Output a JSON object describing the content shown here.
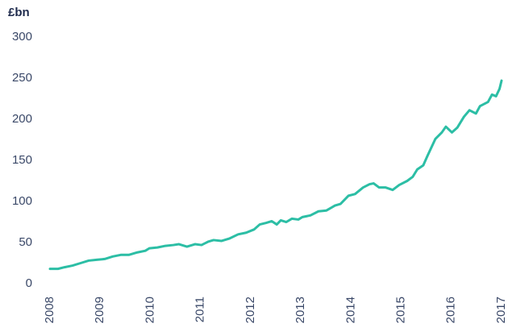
{
  "chart_data": {
    "type": "line",
    "y_label": "£bn",
    "x": [
      2008,
      2008.16,
      2008.29,
      2008.45,
      2008.61,
      2008.77,
      2008.93,
      2009.09,
      2009.25,
      2009.41,
      2009.57,
      2009.74,
      2009.9,
      2009.98,
      2010.14,
      2010.3,
      2010.46,
      2010.57,
      2010.73,
      2010.89,
      2011.02,
      2011.15,
      2011.26,
      2011.42,
      2011.58,
      2011.75,
      2011.91,
      2012.07,
      2012.18,
      2012.31,
      2012.42,
      2012.52,
      2012.6,
      2012.71,
      2012.82,
      2012.95,
      2013.03,
      2013.19,
      2013.35,
      2013.51,
      2013.68,
      2013.79,
      2013.95,
      2014.08,
      2014.24,
      2014.37,
      2014.45,
      2014.56,
      2014.69,
      2014.83,
      2014.96,
      2015.12,
      2015.23,
      2015.32,
      2015.44,
      2015.52,
      2015.68,
      2015.81,
      2015.89,
      2016.01,
      2016.12,
      2016.25,
      2016.36,
      2016.49,
      2016.57,
      2016.73,
      2016.81,
      2016.89,
      2016.96,
      2017
    ],
    "series": [
      {
        "color": "#2cbea5",
        "values": [
          18,
          18,
          20,
          22,
          25,
          28,
          29,
          30,
          33,
          35,
          35,
          38,
          40,
          43,
          44,
          46,
          47,
          48,
          45,
          48,
          47,
          51,
          53,
          52,
          55,
          60,
          62,
          66,
          72,
          74,
          76,
          72,
          77,
          75,
          79,
          78,
          81,
          83,
          88,
          89,
          95,
          97,
          107,
          109,
          117,
          121,
          122,
          117,
          117,
          114,
          120,
          125,
          130,
          139,
          144,
          155,
          176,
          184,
          191,
          184,
          190,
          203,
          211,
          207,
          216,
          221,
          230,
          228,
          237,
          247
        ]
      }
    ],
    "xlim": [
      2008,
      2017
    ],
    "xticks": [
      2008,
      2009,
      2010,
      2011,
      2012,
      2013,
      2014,
      2015,
      2016,
      2017
    ],
    "ylim": [
      0,
      300
    ],
    "yticks": [
      0,
      50,
      100,
      150,
      200,
      250,
      300
    ],
    "grid": false
  }
}
